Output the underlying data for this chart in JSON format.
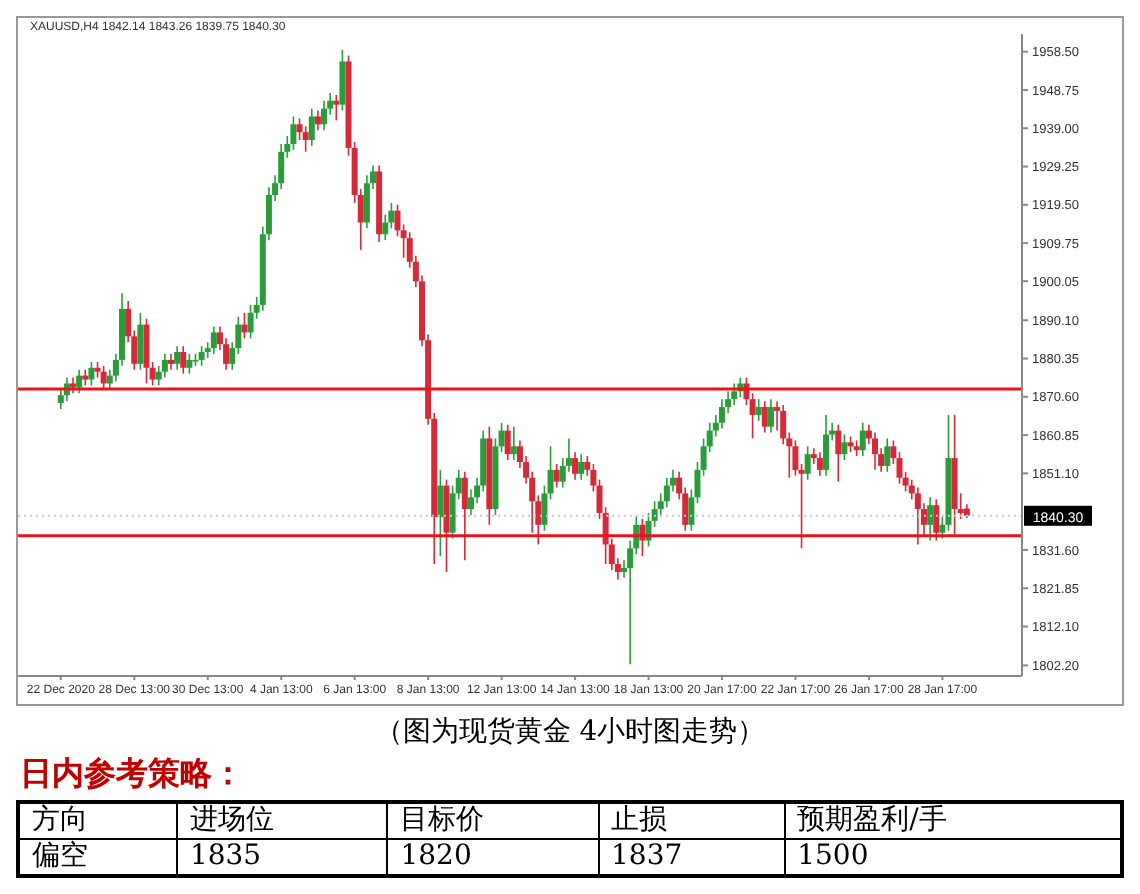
{
  "chart_data": [
    {
      "type": "candlestick",
      "subtitle": "XAUUSD,H4  1842.14 1843.26 1839.75 1840.30",
      "categories": [
        "22 Dec 2020",
        null,
        null,
        null,
        null,
        null,
        null,
        null,
        null,
        null,
        null,
        null,
        "28 Dec 13:00",
        null,
        null,
        null,
        null,
        null,
        null,
        null,
        null,
        null,
        null,
        null,
        "30 Dec 13:00",
        null,
        null,
        null,
        null,
        null,
        null,
        null,
        null,
        null,
        null,
        null,
        "4 Jan 13:00",
        null,
        null,
        null,
        null,
        null,
        null,
        null,
        null,
        null,
        null,
        null,
        "6 Jan 13:00",
        null,
        null,
        null,
        null,
        null,
        null,
        null,
        null,
        null,
        null,
        null,
        "8 Jan 13:00",
        null,
        null,
        null,
        null,
        null,
        null,
        null,
        null,
        null,
        null,
        null,
        "12 Jan 13:00",
        null,
        null,
        null,
        null,
        null,
        null,
        null,
        null,
        null,
        null,
        null,
        "14 Jan 13:00",
        null,
        null,
        null,
        null,
        null,
        null,
        null,
        null,
        null,
        null,
        null,
        "18 Jan 13:00",
        null,
        null,
        null,
        null,
        null,
        null,
        null,
        null,
        null,
        null,
        null,
        "20 Jan 17:00",
        null,
        null,
        null,
        null,
        null,
        null,
        null,
        null,
        null,
        null,
        null,
        "22 Jan 17:00",
        null,
        null,
        null,
        null,
        null,
        null,
        null,
        null,
        null,
        null,
        null,
        "26 Jan 17:00",
        null,
        null,
        null,
        null,
        null,
        null,
        null,
        null,
        null,
        null,
        null,
        "28 Jan 17:00",
        null,
        null,
        null,
        null
      ],
      "ohlc": [
        [
          1869,
          1872.5,
          1867.5,
          1871
        ],
        [
          1871,
          1875.5,
          1869.5,
          1874
        ],
        [
          1874,
          1875.5,
          1871.5,
          1873
        ],
        [
          1873,
          1877.5,
          1871.5,
          1876
        ],
        [
          1876,
          1877.5,
          1873.5,
          1875
        ],
        [
          1875,
          1879.5,
          1873.5,
          1878
        ],
        [
          1878,
          1879.5,
          1875.5,
          1877
        ],
        [
          1877,
          1878.5,
          1872.5,
          1874
        ],
        [
          1874,
          1877.5,
          1872.5,
          1876
        ],
        [
          1876,
          1881.5,
          1874.5,
          1880
        ],
        [
          1880,
          1897,
          1878.5,
          1893
        ],
        [
          1893,
          1895,
          1884.5,
          1886
        ],
        [
          1886,
          1887.5,
          1877.5,
          1879
        ],
        [
          1879,
          1892,
          1877.5,
          1889
        ],
        [
          1889,
          1890.5,
          1874,
          1878
        ],
        [
          1878,
          1879.5,
          1873.5,
          1875
        ],
        [
          1875,
          1878.5,
          1873.5,
          1877
        ],
        [
          1877,
          1881.5,
          1875.5,
          1880
        ],
        [
          1880,
          1881.5,
          1877.5,
          1879
        ],
        [
          1879,
          1883.5,
          1877.5,
          1882
        ],
        [
          1882,
          1883.5,
          1876.5,
          1878
        ],
        [
          1878,
          1881.5,
          1876.5,
          1880
        ],
        [
          1880,
          1881.5,
          1878.5,
          1880
        ],
        [
          1880,
          1883.5,
          1878.5,
          1882
        ],
        [
          1882,
          1884.5,
          1880.5,
          1883
        ],
        [
          1883,
          1888.5,
          1881.5,
          1887
        ],
        [
          1887,
          1888.5,
          1882.5,
          1884
        ],
        [
          1884,
          1885.5,
          1877.5,
          1879
        ],
        [
          1879,
          1884.5,
          1877.5,
          1883
        ],
        [
          1883,
          1891,
          1881.5,
          1889
        ],
        [
          1889,
          1892,
          1885.5,
          1887
        ],
        [
          1887,
          1894,
          1885.5,
          1892
        ],
        [
          1892,
          1896,
          1890.5,
          1894
        ],
        [
          1894,
          1914,
          1892.5,
          1912
        ],
        [
          1912,
          1924,
          1910.5,
          1922
        ],
        [
          1922,
          1927,
          1920.5,
          1925
        ],
        [
          1925,
          1935,
          1923.5,
          1933
        ],
        [
          1933,
          1937,
          1931.5,
          1935
        ],
        [
          1935,
          1942,
          1933.5,
          1940
        ],
        [
          1940,
          1941.5,
          1936,
          1938
        ],
        [
          1938,
          1939.5,
          1933,
          1936
        ],
        [
          1936,
          1944,
          1934.5,
          1942
        ],
        [
          1942,
          1943.5,
          1938.5,
          1940
        ],
        [
          1940,
          1946,
          1938.5,
          1944
        ],
        [
          1944,
          1948,
          1942.5,
          1946
        ],
        [
          1946,
          1947.5,
          1941,
          1945
        ],
        [
          1945,
          1959,
          1943.5,
          1956
        ],
        [
          1956,
          1957.5,
          1932,
          1934
        ],
        [
          1934,
          1935.5,
          1920,
          1922
        ],
        [
          1922,
          1923.5,
          1908,
          1915
        ],
        [
          1915,
          1927,
          1913.5,
          1925
        ],
        [
          1925,
          1929.5,
          1923.5,
          1928
        ],
        [
          1928,
          1929.5,
          1910,
          1912
        ],
        [
          1912,
          1917,
          1910.5,
          1915
        ],
        [
          1915,
          1920,
          1913.5,
          1918
        ],
        [
          1918,
          1919.5,
          1911.5,
          1913
        ],
        [
          1913,
          1914.5,
          1906,
          1911
        ],
        [
          1911,
          1912.5,
          1903.5,
          1905
        ],
        [
          1905,
          1906.5,
          1898.5,
          1900
        ],
        [
          1900,
          1901.5,
          1883.5,
          1885
        ],
        [
          1885,
          1886.5,
          1863.5,
          1865
        ],
        [
          1865,
          1866.5,
          1828,
          1840
        ],
        [
          1840,
          1852,
          1830,
          1848
        ],
        [
          1848,
          1849.5,
          1826,
          1836
        ],
        [
          1836,
          1848,
          1834.5,
          1846
        ],
        [
          1846,
          1852,
          1844.5,
          1850
        ],
        [
          1850,
          1851.5,
          1829,
          1842
        ],
        [
          1842,
          1847,
          1840.5,
          1845
        ],
        [
          1845,
          1850,
          1843.5,
          1848
        ],
        [
          1848,
          1862,
          1846.5,
          1860
        ],
        [
          1860,
          1863,
          1838,
          1842
        ],
        [
          1842,
          1860,
          1840.5,
          1858
        ],
        [
          1858,
          1864,
          1856.5,
          1862
        ],
        [
          1862,
          1863.5,
          1854.5,
          1856
        ],
        [
          1856,
          1863,
          1854.5,
          1858
        ],
        [
          1858,
          1859.5,
          1852.5,
          1854
        ],
        [
          1854,
          1855.5,
          1848.5,
          1850
        ],
        [
          1850,
          1851.5,
          1836,
          1844
        ],
        [
          1844,
          1845.5,
          1833,
          1838
        ],
        [
          1838,
          1848,
          1836.5,
          1846
        ],
        [
          1846,
          1858,
          1844.5,
          1852
        ],
        [
          1852,
          1853.5,
          1847.5,
          1849
        ],
        [
          1849,
          1855,
          1847.5,
          1853
        ],
        [
          1853,
          1860,
          1851.5,
          1855
        ],
        [
          1855,
          1856.5,
          1849.5,
          1851
        ],
        [
          1851,
          1856,
          1849.5,
          1854
        ],
        [
          1854,
          1855.5,
          1850.5,
          1852
        ],
        [
          1852,
          1853.5,
          1846.5,
          1848
        ],
        [
          1848,
          1849.5,
          1839.5,
          1841
        ],
        [
          1841,
          1842.5,
          1828,
          1833
        ],
        [
          1833,
          1834.5,
          1826.5,
          1828
        ],
        [
          1828,
          1829.5,
          1824,
          1826
        ],
        [
          1826,
          1829,
          1824.5,
          1827
        ],
        [
          1827,
          1834,
          1802.5,
          1832
        ],
        [
          1832,
          1840,
          1830.5,
          1838
        ],
        [
          1838,
          1839.5,
          1830,
          1834
        ],
        [
          1834,
          1841,
          1832.5,
          1839
        ],
        [
          1839,
          1844,
          1837.5,
          1842
        ],
        [
          1842,
          1846,
          1840.5,
          1844
        ],
        [
          1844,
          1850,
          1842.5,
          1848
        ],
        [
          1848,
          1852,
          1846.5,
          1850
        ],
        [
          1850,
          1851.5,
          1844.5,
          1846
        ],
        [
          1846,
          1847.5,
          1836.5,
          1838
        ],
        [
          1838,
          1847,
          1836.5,
          1845
        ],
        [
          1845,
          1854,
          1843.5,
          1852
        ],
        [
          1852,
          1860,
          1850.5,
          1858
        ],
        [
          1858,
          1864,
          1856.5,
          1862
        ],
        [
          1862,
          1866,
          1860.5,
          1864
        ],
        [
          1864,
          1870,
          1862.5,
          1868
        ],
        [
          1868,
          1872,
          1866.5,
          1870
        ],
        [
          1870,
          1874,
          1868.5,
          1872
        ],
        [
          1872,
          1875.5,
          1870.5,
          1874
        ],
        [
          1874,
          1875.5,
          1868.5,
          1870
        ],
        [
          1870,
          1871.5,
          1860,
          1866
        ],
        [
          1866,
          1870,
          1864.5,
          1868
        ],
        [
          1868,
          1869.5,
          1861.5,
          1863
        ],
        [
          1863,
          1870,
          1861.5,
          1868
        ],
        [
          1868,
          1869.5,
          1862,
          1867
        ],
        [
          1867,
          1868.5,
          1858.5,
          1860
        ],
        [
          1860,
          1861.5,
          1850,
          1858
        ],
        [
          1858,
          1859.5,
          1850.5,
          1852
        ],
        [
          1852,
          1853.5,
          1832,
          1851
        ],
        [
          1851,
          1858,
          1849.5,
          1856
        ],
        [
          1856,
          1857.5,
          1853.5,
          1855
        ],
        [
          1855,
          1856.5,
          1850.5,
          1852
        ],
        [
          1852,
          1866,
          1850.5,
          1861
        ],
        [
          1861,
          1864,
          1859.5,
          1862
        ],
        [
          1862,
          1863.5,
          1849,
          1856
        ],
        [
          1856,
          1861,
          1854.5,
          1859
        ],
        [
          1859,
          1860.5,
          1856.5,
          1858
        ],
        [
          1858,
          1859.5,
          1855.5,
          1857
        ],
        [
          1857,
          1864,
          1855.5,
          1862
        ],
        [
          1862,
          1863.5,
          1858.5,
          1860
        ],
        [
          1860,
          1861.5,
          1852,
          1856
        ],
        [
          1856,
          1857.5,
          1851.5,
          1853
        ],
        [
          1853,
          1860,
          1851.5,
          1858
        ],
        [
          1858,
          1859.5,
          1853.5,
          1855
        ],
        [
          1855,
          1856.5,
          1848.5,
          1850
        ],
        [
          1850,
          1851.5,
          1846.5,
          1848
        ],
        [
          1848,
          1849.5,
          1844.5,
          1846
        ],
        [
          1846,
          1847.5,
          1833,
          1842
        ],
        [
          1842,
          1843.5,
          1835,
          1838
        ],
        [
          1838,
          1845,
          1834,
          1843
        ],
        [
          1843,
          1844.5,
          1834,
          1836
        ],
        [
          1836,
          1840,
          1834.5,
          1838
        ],
        [
          1838,
          1866,
          1836.5,
          1855
        ],
        [
          1855,
          1866,
          1835,
          1842
        ],
        [
          1842,
          1846,
          1839.5,
          1841
        ],
        [
          1842.14,
          1843.26,
          1839.75,
          1840.3
        ]
      ],
      "colors": [
        "#2a9d3a",
        "#2a9d3a",
        "#d42a3a",
        "#2a9d3a",
        "#d42a3a",
        "#2a9d3a",
        "#d42a3a",
        "#d42a3a",
        "#2a9d3a",
        "#2a9d3a",
        "#2a9d3a",
        "#d42a3a",
        "#d42a3a",
        "#2a9d3a",
        "#d42a3a",
        "#d42a3a",
        "#2a9d3a",
        "#2a9d3a",
        "#d42a3a",
        "#2a9d3a",
        "#d42a3a",
        "#2a9d3a",
        "#2a9d3a",
        "#2a9d3a",
        "#2a9d3a",
        "#2a9d3a",
        "#d42a3a",
        "#d42a3a",
        "#2a9d3a",
        "#2a9d3a",
        "#d42a3a",
        "#2a9d3a",
        "#2a9d3a",
        "#2a9d3a",
        "#2a9d3a",
        "#2a9d3a",
        "#2a9d3a",
        "#2a9d3a",
        "#2a9d3a",
        "#d42a3a",
        "#d42a3a",
        "#2a9d3a",
        "#d42a3a",
        "#2a9d3a",
        "#2a9d3a",
        "#d42a3a",
        "#2a9d3a",
        "#d42a3a",
        "#d42a3a",
        "#d42a3a",
        "#2a9d3a",
        "#2a9d3a",
        "#d42a3a",
        "#2a9d3a",
        "#2a9d3a",
        "#d42a3a",
        "#d42a3a",
        "#d42a3a",
        "#d42a3a",
        "#d42a3a",
        "#d42a3a",
        "#d42a3a",
        "#2a9d3a",
        "#d42a3a",
        "#2a9d3a",
        "#2a9d3a",
        "#d42a3a",
        "#2a9d3a",
        "#2a9d3a",
        "#2a9d3a",
        "#d42a3a",
        "#2a9d3a",
        "#2a9d3a",
        "#d42a3a",
        "#2a9d3a",
        "#d42a3a",
        "#d42a3a",
        "#d42a3a",
        "#d42a3a",
        "#2a9d3a",
        "#2a9d3a",
        "#d42a3a",
        "#2a9d3a",
        "#2a9d3a",
        "#d42a3a",
        "#2a9d3a",
        "#d42a3a",
        "#d42a3a",
        "#d42a3a",
        "#d42a3a",
        "#d42a3a",
        "#d42a3a",
        "#2a9d3a",
        "#2a9d3a",
        "#2a9d3a",
        "#d42a3a",
        "#2a9d3a",
        "#2a9d3a",
        "#2a9d3a",
        "#2a9d3a",
        "#2a9d3a",
        "#d42a3a",
        "#d42a3a",
        "#2a9d3a",
        "#2a9d3a",
        "#2a9d3a",
        "#2a9d3a",
        "#2a9d3a",
        "#2a9d3a",
        "#2a9d3a",
        "#2a9d3a",
        "#2a9d3a",
        "#d42a3a",
        "#d42a3a",
        "#2a9d3a",
        "#d42a3a",
        "#2a9d3a",
        "#d42a3a",
        "#d42a3a",
        "#d42a3a",
        "#d42a3a",
        "#d42a3a",
        "#2a9d3a",
        "#d42a3a",
        "#d42a3a",
        "#2a9d3a",
        "#2a9d3a",
        "#d42a3a",
        "#2a9d3a",
        "#d42a3a",
        "#d42a3a",
        "#2a9d3a",
        "#d42a3a",
        "#d42a3a",
        "#d42a3a",
        "#2a9d3a",
        "#d42a3a",
        "#d42a3a",
        "#d42a3a",
        "#d42a3a",
        "#d42a3a",
        "#d42a3a",
        "#2a9d3a",
        "#d42a3a",
        "#2a9d3a",
        "#2a9d3a",
        "#d42a3a",
        "#d42a3a",
        "#d42a3a"
      ],
      "ylim": [
        1799.5,
        1963
      ],
      "yticks": [
        {
          "value": 1958.5,
          "label": "1958.50"
        },
        {
          "value": 1948.75,
          "label": "1948.75"
        },
        {
          "value": 1939,
          "label": "1939.00"
        },
        {
          "value": 1929.25,
          "label": "1929.25"
        },
        {
          "value": 1919.5,
          "label": "1919.50"
        },
        {
          "value": 1909.75,
          "label": "1909.75"
        },
        {
          "value": 1900.05,
          "label": "1900.05"
        },
        {
          "value": 1890.1,
          "label": "1890.10"
        },
        {
          "value": 1880.35,
          "label": "1880.35"
        },
        {
          "value": 1870.6,
          "label": "1870.60"
        },
        {
          "value": 1860.85,
          "label": "1860.85"
        },
        {
          "value": 1851.1,
          "label": "1851.10"
        },
        {
          "value": 1831.6,
          "label": "1831.60"
        },
        {
          "value": 1821.85,
          "label": "1821.85"
        },
        {
          "value": 1812.1,
          "label": "1812.10"
        },
        {
          "value": 1802.2,
          "label": "1802.20"
        }
      ],
      "ref_lines": [
        {
          "axis": "y",
          "value": 1872.6,
          "color": "#e8141c",
          "line_style": "solid"
        },
        {
          "axis": "y",
          "value": 1835.2,
          "color": "#e8141c",
          "line_style": "solid"
        },
        {
          "axis": "y",
          "value": 1840.3,
          "label": "1840.30",
          "color": "#c8c8c8",
          "line_style": "dotted"
        }
      ],
      "annotations": [
        "（图为现货黄金 4小时图走势）"
      ]
    },
    {
      "type": "other",
      "title": "日内参考策略：",
      "categories": [
        "方向",
        "进场位",
        "目标价",
        "止损",
        "预期盈利/手"
      ],
      "value_labels": [
        "偏空",
        "1835",
        "1820",
        "1837",
        "1500"
      ]
    }
  ]
}
